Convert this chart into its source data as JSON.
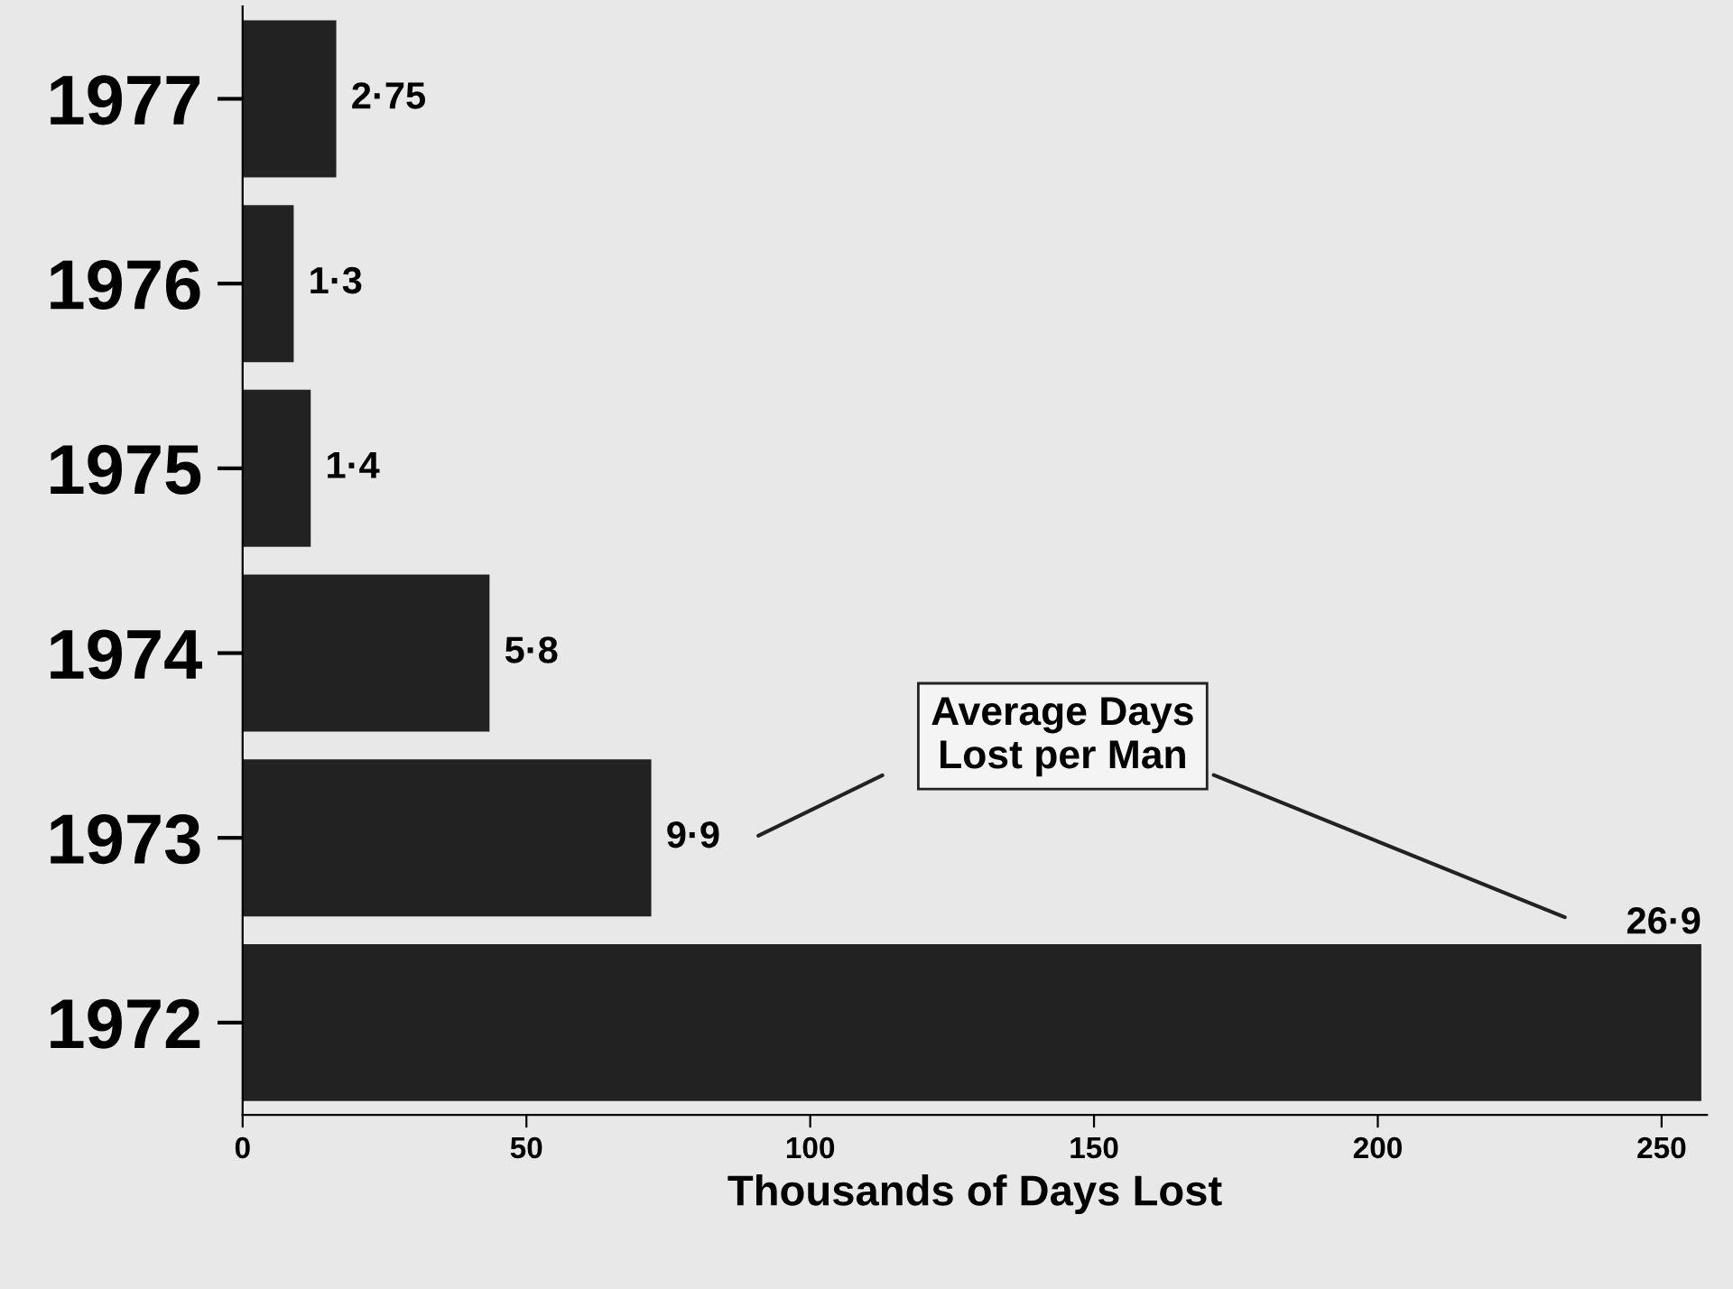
{
  "chart_data": {
    "type": "bar",
    "orientation": "horizontal",
    "xlabel": "Thousands of Days Lost",
    "categories": [
      "1977",
      "1976",
      "1975",
      "1974",
      "1973",
      "1972"
    ],
    "values": [
      16.5,
      9,
      12,
      43.5,
      72,
      257
    ],
    "color": "#222222",
    "xlim": [
      0,
      258
    ],
    "xticks": [
      0,
      50,
      100,
      150,
      200,
      250
    ],
    "annotations": [
      {
        "text": "2·75",
        "x": 16.5,
        "y": "1977"
      },
      {
        "text": "1·3",
        "x": 9,
        "y": "1976"
      },
      {
        "text": "1·4",
        "x": 12,
        "y": "1975"
      },
      {
        "text": "5·8",
        "x": 43.5,
        "y": "1974"
      },
      {
        "text": "9·9",
        "x": 72,
        "y": "1973"
      },
      {
        "text": "26·9",
        "x": 257,
        "y": "1972"
      },
      "Average Days\nLost per Man"
    ],
    "grid": false,
    "legend": false
  }
}
